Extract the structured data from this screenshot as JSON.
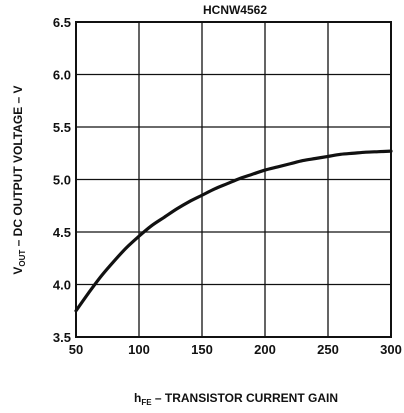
{
  "chart_data": {
    "type": "line",
    "title": "HCNW4562",
    "xlabel": {
      "main": "h",
      "sub": "FE",
      "rest": " – TRANSISTOR CURRENT GAIN"
    },
    "ylabel": {
      "main": "V",
      "sub": "OUT",
      "rest": " – DC OUTPUT VOLTAGE – V"
    },
    "xlim": [
      50,
      300
    ],
    "ylim": [
      3.5,
      6.5
    ],
    "xticks": [
      50,
      100,
      150,
      200,
      250,
      300
    ],
    "yticks": [
      3.5,
      4.0,
      4.5,
      5.0,
      5.5,
      6.0,
      6.5
    ],
    "xtick_labels": [
      "50",
      "100",
      "150",
      "200",
      "250",
      "300"
    ],
    "ytick_labels": [
      "3.5",
      "4.0",
      "4.5",
      "5.0",
      "5.5",
      "6.0",
      "6.5"
    ],
    "grid": true,
    "series": [
      {
        "x": [
          50,
          60,
          70,
          80,
          90,
          100,
          110,
          120,
          130,
          140,
          150,
          160,
          170,
          180,
          190,
          200,
          210,
          220,
          230,
          240,
          250,
          260,
          270,
          280,
          290,
          300
        ],
        "y": [
          3.75,
          3.92,
          4.08,
          4.22,
          4.35,
          4.46,
          4.56,
          4.64,
          4.72,
          4.79,
          4.85,
          4.91,
          4.96,
          5.01,
          5.05,
          5.09,
          5.12,
          5.15,
          5.18,
          5.2,
          5.22,
          5.24,
          5.25,
          5.26,
          5.265,
          5.27
        ]
      }
    ],
    "colors": {
      "line": "#111111",
      "grid": "#111111"
    }
  }
}
